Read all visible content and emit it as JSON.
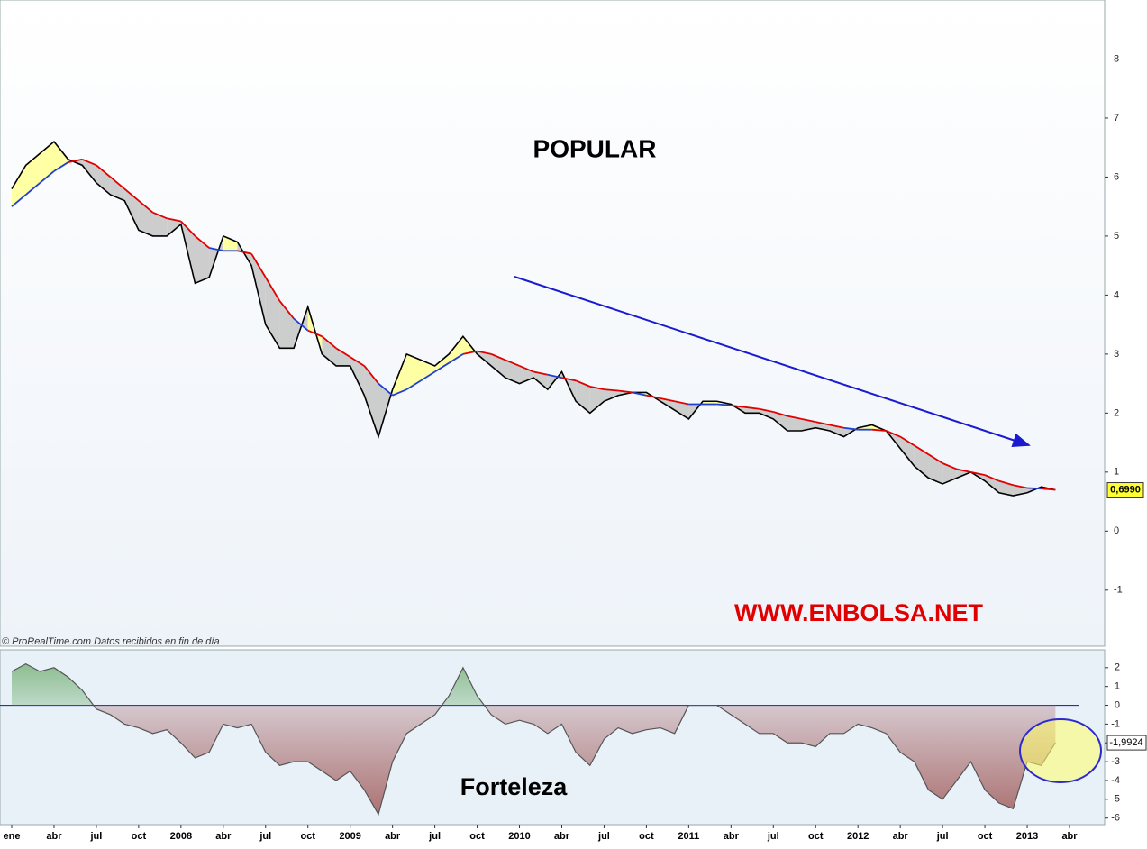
{
  "chart_data": [
    {
      "type": "price",
      "title": "POPULAR",
      "annotation": "WWW.ENBOLSA.NET",
      "source": "© ProRealTime.com  Datos recibidos en fin de día",
      "ylim": [
        -1.95,
        9
      ],
      "yticks": [
        8,
        7,
        6,
        5,
        4,
        3,
        2,
        1,
        0,
        -1
      ],
      "fill_above": "#ffff99",
      "fill_below": "#c8c8c8",
      "series": [
        {
          "color": "#000000",
          "values": [
            5.8,
            6.2,
            6.4,
            6.6,
            6.3,
            6.2,
            5.9,
            5.7,
            5.6,
            5.1,
            5.0,
            5.0,
            5.2,
            4.2,
            4.3,
            5.0,
            4.9,
            4.5,
            3.5,
            3.1,
            3.1,
            3.8,
            3.0,
            2.8,
            2.8,
            2.3,
            1.6,
            2.4,
            3.0,
            2.9,
            2.8,
            3.0,
            3.3,
            3.0,
            2.8,
            2.6,
            2.5,
            2.6,
            2.4,
            2.7,
            2.2,
            2.0,
            2.2,
            2.3,
            2.35,
            2.35,
            2.2,
            2.05,
            1.9,
            2.2,
            2.2,
            2.15,
            2.0,
            2.0,
            1.9,
            1.7,
            1.7,
            1.75,
            1.7,
            1.6,
            1.75,
            1.8,
            1.7,
            1.4,
            1.1,
            0.9,
            0.8,
            0.9,
            1.0,
            0.85,
            0.65,
            0.6,
            0.65,
            0.75,
            0.699,
            null
          ],
          "value_labels": [
            null,
            null,
            null,
            null,
            null,
            null,
            null,
            null,
            null,
            null,
            null,
            null,
            null,
            null,
            null,
            null,
            null,
            null,
            null,
            null,
            null,
            null,
            null,
            null,
            null,
            null,
            null,
            null,
            null,
            null,
            null,
            null,
            null,
            null,
            null,
            null,
            null,
            null,
            null,
            null,
            null,
            null,
            null,
            null,
            null,
            null,
            null,
            null,
            null,
            null,
            null,
            null,
            null,
            null,
            null,
            null,
            null,
            null,
            null,
            null,
            null,
            null,
            null,
            null,
            null,
            null,
            null,
            null,
            null,
            null,
            null,
            null,
            null,
            null,
            "0,6990",
            null
          ]
        },
        {
          "color": "#e00000",
          "alt_color": "#1f3fd0",
          "values": [
            5.5,
            5.7,
            5.9,
            6.1,
            6.25,
            6.3,
            6.2,
            6.0,
            5.8,
            5.6,
            5.4,
            5.3,
            5.25,
            5.0,
            4.8,
            4.75,
            4.75,
            4.7,
            4.3,
            3.9,
            3.6,
            3.4,
            3.3,
            3.1,
            2.95,
            2.8,
            2.5,
            2.3,
            2.4,
            2.55,
            2.7,
            2.85,
            3.0,
            3.05,
            3.0,
            2.9,
            2.8,
            2.7,
            2.65,
            2.6,
            2.55,
            2.45,
            2.4,
            2.38,
            2.35,
            2.3,
            2.25,
            2.2,
            2.15,
            2.15,
            2.15,
            2.13,
            2.1,
            2.07,
            2.02,
            1.95,
            1.9,
            1.85,
            1.8,
            1.75,
            1.72,
            1.72,
            1.7,
            1.6,
            1.45,
            1.3,
            1.15,
            1.05,
            1.0,
            0.95,
            0.85,
            0.78,
            0.73,
            0.72,
            0.7,
            null
          ]
        }
      ]
    },
    {
      "type": "oscillator",
      "title": "Forteleza",
      "categories": [
        "ene",
        null,
        null,
        "abr",
        null,
        null,
        "jul",
        null,
        null,
        "oct",
        null,
        null,
        "2008",
        null,
        null,
        "abr",
        null,
        null,
        "jul",
        null,
        null,
        "oct",
        null,
        null,
        "2009",
        null,
        null,
        "abr",
        null,
        null,
        "jul",
        null,
        null,
        "oct",
        null,
        null,
        "2010",
        null,
        null,
        "abr",
        null,
        null,
        "jul",
        null,
        null,
        "oct",
        null,
        null,
        "2011",
        null,
        null,
        "abr",
        null,
        null,
        "jul",
        null,
        null,
        "oct",
        null,
        null,
        "2012",
        null,
        null,
        "abr",
        null,
        null,
        "jul",
        null,
        null,
        "oct",
        null,
        null,
        "2013",
        null,
        null,
        "abr"
      ],
      "ylim": [
        -6.35,
        2.95
      ],
      "yticks": [
        2,
        1,
        0,
        -1,
        -2,
        -3,
        -4,
        -5,
        -6
      ],
      "color_above": "#6fae6f",
      "color_below": "#a86a6a",
      "zero_color": "#2a2ad0",
      "values": [
        1.8,
        2.2,
        1.8,
        2.0,
        1.5,
        0.8,
        -0.2,
        -0.5,
        -1.0,
        -1.2,
        -1.5,
        -1.3,
        -2.0,
        -2.8,
        -2.5,
        -1.0,
        -1.2,
        -1.0,
        -2.5,
        -3.2,
        -3.0,
        -3.0,
        -3.5,
        -4.0,
        -3.5,
        -4.5,
        -5.8,
        -3.0,
        -1.5,
        -1.0,
        -0.5,
        0.5,
        2.0,
        0.5,
        -0.5,
        -1.0,
        -0.8,
        -1.0,
        -1.5,
        -1.0,
        -2.5,
        -3.2,
        -1.8,
        -1.2,
        -1.5,
        -1.3,
        -1.2,
        -1.5,
        0.0,
        0.0,
        0.0,
        -0.5,
        -1.0,
        -1.5,
        -1.5,
        -2.0,
        -2.0,
        -2.2,
        -1.5,
        -1.5,
        -1.0,
        -1.2,
        -1.5,
        -2.5,
        -3.0,
        -4.5,
        -5.0,
        -4.0,
        -3.0,
        -4.5,
        -5.2,
        -5.5,
        -3.0,
        -3.2,
        -1.9924,
        null
      ],
      "value_labels": [
        null,
        null,
        null,
        null,
        null,
        null,
        null,
        null,
        null,
        null,
        null,
        null,
        null,
        null,
        null,
        null,
        null,
        null,
        null,
        null,
        null,
        null,
        null,
        null,
        null,
        null,
        null,
        null,
        null,
        null,
        null,
        null,
        null,
        null,
        null,
        null,
        null,
        null,
        null,
        null,
        null,
        null,
        null,
        null,
        null,
        null,
        null,
        null,
        null,
        null,
        null,
        null,
        null,
        null,
        null,
        null,
        null,
        null,
        null,
        null,
        null,
        null,
        null,
        null,
        null,
        null,
        null,
        null,
        null,
        null,
        null,
        null,
        null,
        null,
        "-1,9924",
        null
      ]
    }
  ]
}
